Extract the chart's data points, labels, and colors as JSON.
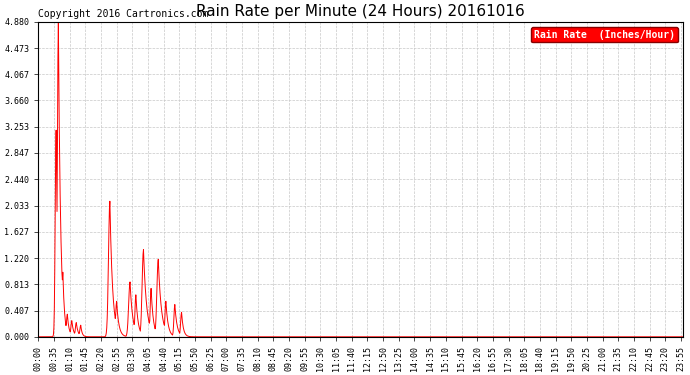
{
  "title": "Rain Rate per Minute (24 Hours) 20161016",
  "copyright": "Copyright 2016 Cartronics.com",
  "legend_label": "Rain Rate  (Inches/Hour)",
  "background_color": "#ffffff",
  "plot_bg_color": "#ffffff",
  "line_color": "#ff0000",
  "grid_color": "#c8c8c8",
  "yticks": [
    0.0,
    0.407,
    0.813,
    1.22,
    1.627,
    2.033,
    2.44,
    2.847,
    3.253,
    3.66,
    4.067,
    4.473,
    4.88
  ],
  "ylim": [
    0.0,
    4.88
  ],
  "total_minutes": 1440,
  "title_fontsize": 11,
  "legend_fontsize": 7,
  "tick_fontsize": 6,
  "copyright_fontsize": 7,
  "xtick_interval": 35
}
